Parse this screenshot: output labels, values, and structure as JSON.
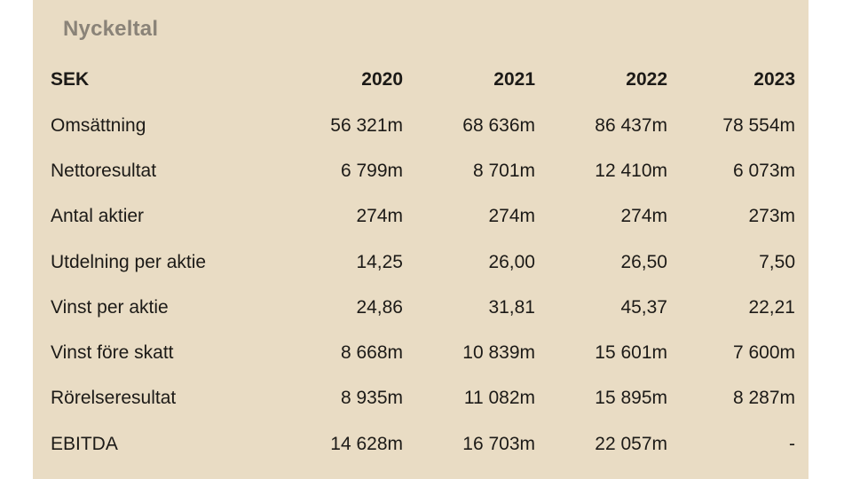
{
  "title": "Nyckeltal",
  "table": {
    "columns": [
      "SEK",
      "2020",
      "2021",
      "2022",
      "2023"
    ],
    "rows": [
      {
        "label": "Omsättning",
        "values": [
          "56 321m",
          "68 636m",
          "86 437m",
          "78 554m"
        ]
      },
      {
        "label": "Nettoresultat",
        "values": [
          "6 799m",
          "8 701m",
          "12 410m",
          "6 073m"
        ]
      },
      {
        "label": "Antal aktier",
        "values": [
          "274m",
          "274m",
          "274m",
          "273m"
        ]
      },
      {
        "label": "Utdelning per aktie",
        "values": [
          "14,25",
          "26,00",
          "26,50",
          "7,50"
        ]
      },
      {
        "label": "Vinst per aktie",
        "values": [
          "24,86",
          "31,81",
          "45,37",
          "22,21"
        ]
      },
      {
        "label": "Vinst före skatt",
        "values": [
          "8 668m",
          "10 839m",
          "15 601m",
          "7 600m"
        ]
      },
      {
        "label": "Rörelseresultat",
        "values": [
          "8 935m",
          "11 082m",
          "15 895m",
          "8 287m"
        ]
      },
      {
        "label": "EBITDA",
        "values": [
          "14 628m",
          "16 703m",
          "22 057m",
          "-"
        ]
      }
    ]
  },
  "colors": {
    "panel_background": "#e9dcc4",
    "title_text": "#8a8378",
    "body_text": "#1c1a17"
  }
}
